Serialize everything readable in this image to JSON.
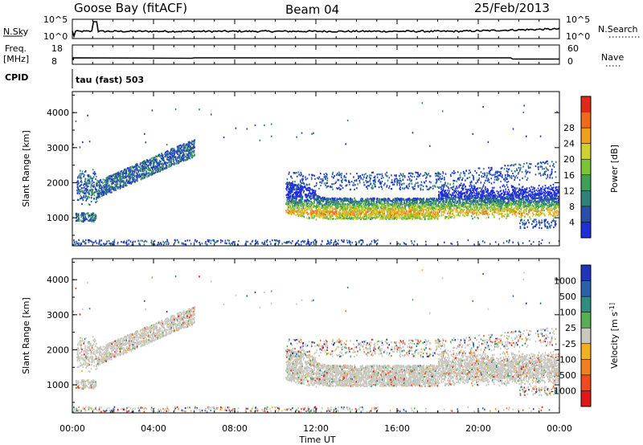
{
  "header": {
    "station": "Goose Bay (fitACF)",
    "beam": "Beam 04",
    "date": "25/Feb/2013"
  },
  "strip": {
    "nsky_label": "N.Sky",
    "nsky_ticks": [
      "10^5",
      "10^0"
    ],
    "nsearch_label": "N.Search",
    "nsearch_ticks": [
      "10^5",
      "10^0"
    ],
    "freq_label_line1": "Freq.",
    "freq_label_line2": "[MHz]",
    "freq_ticks": [
      "18",
      "8"
    ],
    "nave_label": "Nave",
    "nave_ticks": [
      "60",
      "0"
    ],
    "cpid_label": "CPID",
    "cpid_value": "tau (fast) 503"
  },
  "chart_data": [
    {
      "type": "heatmap",
      "name": "power",
      "ylabel": "Slant Range [km]",
      "yticks": [
        "1000",
        "2000",
        "3000",
        "4000"
      ],
      "ylim": [
        200,
        4600
      ],
      "xlim": [
        0,
        24
      ],
      "colorbar": {
        "label": "Power [dB]",
        "ticks": [
          "4",
          "8",
          "12",
          "16",
          "20",
          "24",
          "28"
        ],
        "colors": [
          "#1f2fd8",
          "#2b4da8",
          "#2f7f7a",
          "#3da056",
          "#7cc23a",
          "#cfd033",
          "#f0a020",
          "#ef6a1a",
          "#e02a18"
        ]
      },
      "echo_regions": [
        {
          "label": "early low band",
          "x0": 0.1,
          "x1": 1.1,
          "r0": 900,
          "r1": 1150
        },
        {
          "label": "early rising band",
          "x0": 0.2,
          "x1": 6.0,
          "r0": 1400,
          "r1": 3100
        },
        {
          "label": "ground scatter",
          "x0": 10.5,
          "x1": 24.0,
          "r0": 900,
          "r1": 2200
        },
        {
          "label": "near range",
          "x0": 0.0,
          "x1": 24.0,
          "r0": 200,
          "r1": 400
        }
      ]
    },
    {
      "type": "heatmap",
      "name": "velocity",
      "ylabel": "Slant Range [km]",
      "yticks": [
        "1000",
        "2000",
        "3000",
        "4000"
      ],
      "ylim": [
        200,
        4600
      ],
      "xlim": [
        0,
        24
      ],
      "xticks": [
        "00:00",
        "04:00",
        "08:00",
        "12:00",
        "16:00",
        "20:00",
        "00:00"
      ],
      "xlabel": "Time UT",
      "colorbar": {
        "label": "Velocity [m s^-1]",
        "ticks": [
          "1000",
          "500",
          "100",
          "25",
          "-25",
          "-100",
          "-500",
          "-1000"
        ],
        "colors": [
          "#2036b8",
          "#2a62a8",
          "#2f8c80",
          "#56b050",
          "#c8c8c0",
          "#f0b020",
          "#f08020",
          "#ef4a20",
          "#e01818"
        ]
      }
    }
  ]
}
